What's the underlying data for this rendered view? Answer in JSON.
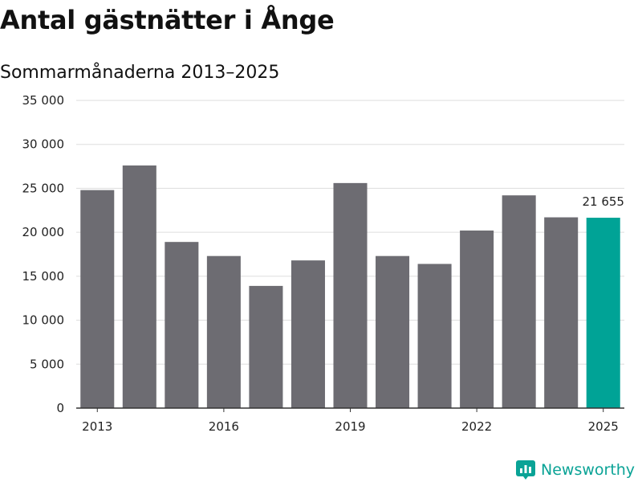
{
  "header": {
    "title": "Antal gästnätter i Ånge",
    "subtitle": "Sommarmånaderna 2013–2025"
  },
  "brand": {
    "name": "Newsworthy",
    "icon": "newsworthy-logo-icon",
    "color": "#0aa396"
  },
  "chart_data": {
    "type": "bar",
    "title": "Antal gästnätter i Ånge",
    "subtitle": "Sommarmånaderna 2013–2025",
    "xlabel": "",
    "ylabel": "",
    "categories": [
      "2013",
      "2014",
      "2015",
      "2016",
      "2017",
      "2018",
      "2019",
      "2020",
      "2021",
      "2022",
      "2023",
      "2024",
      "2025"
    ],
    "values": [
      24800,
      27600,
      18900,
      17300,
      13900,
      16800,
      25600,
      17300,
      16400,
      20200,
      24200,
      21700,
      21655
    ],
    "x_tick_labels": [
      "2013",
      "2016",
      "2019",
      "2022",
      "2025"
    ],
    "y_tick_labels": [
      "0",
      "5 000",
      "10 000",
      "15 000",
      "20 000",
      "25 000",
      "30 000",
      "35 000"
    ],
    "ylim": [
      0,
      35000
    ],
    "grid": true,
    "highlight_index": 12,
    "data_labels": [
      {
        "index": 12,
        "text": "21 655"
      }
    ],
    "colors": {
      "bar": "#6d6c72",
      "highlight": "#00a396",
      "grid": "#dddddd",
      "axis": "#333333"
    }
  }
}
